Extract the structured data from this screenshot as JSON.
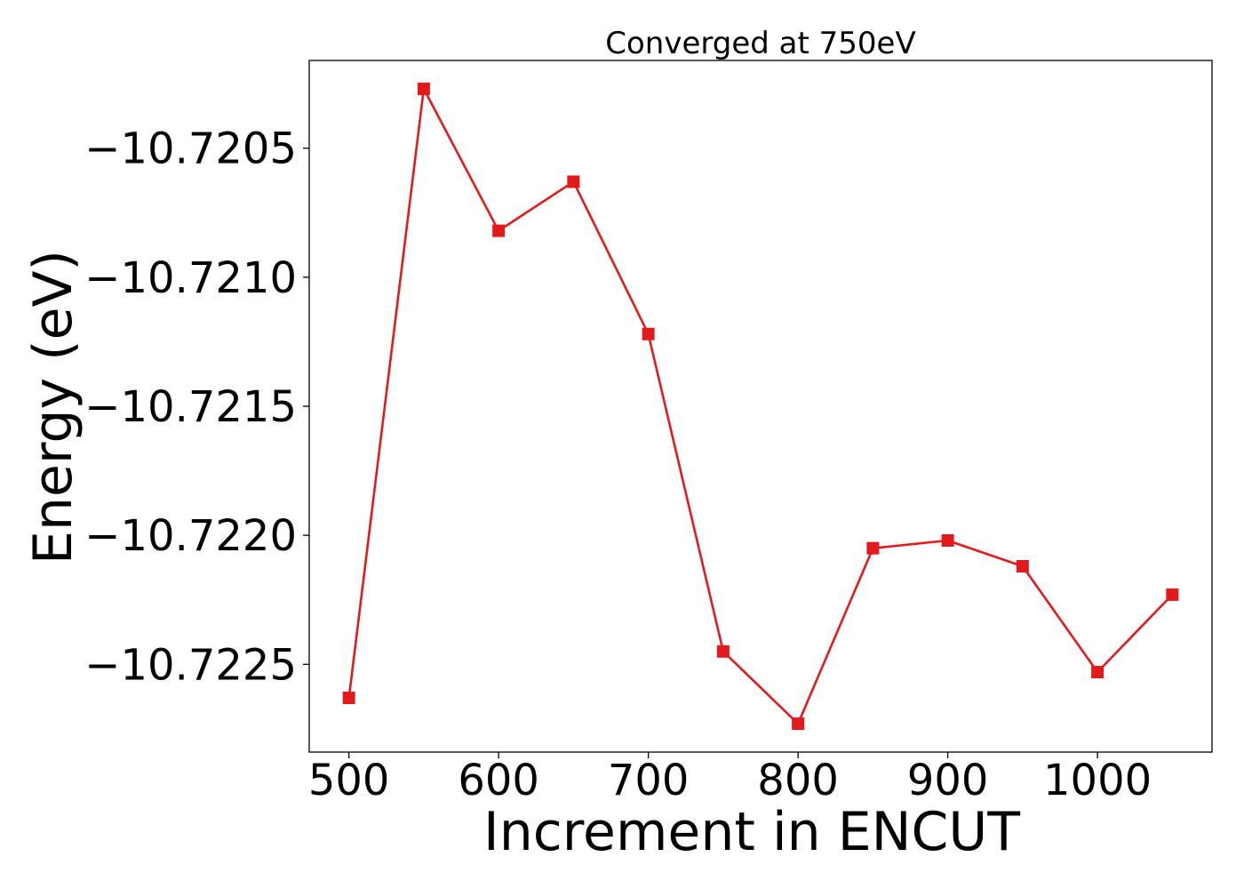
{
  "chart_data": {
    "type": "line",
    "title": "Converged at 750eV",
    "xlabel": "Increment in ENCUT",
    "ylabel": "Energy (eV)",
    "xlim": [
      473.5,
      1076.5
    ],
    "ylim": [
      -10.72284,
      -10.72016
    ],
    "xticks": [
      500,
      600,
      700,
      800,
      900,
      1000
    ],
    "xtick_labels": [
      "500",
      "600",
      "700",
      "800",
      "900",
      "1000"
    ],
    "yticks": [
      -10.7205,
      -10.721,
      -10.7215,
      -10.722,
      -10.7225
    ],
    "ytick_labels": [
      "−10.7205",
      "−10.7210",
      "−10.7215",
      "−10.7220",
      "−10.7225"
    ],
    "grid": false,
    "legend": "none",
    "series": [
      {
        "color": "#e31a1c",
        "marker": "square",
        "x": [
          500,
          550,
          600,
          650,
          700,
          750,
          800,
          850,
          900,
          950,
          1000,
          1050
        ],
        "y": [
          -10.72263,
          -10.72027,
          -10.72082,
          -10.72063,
          -10.72122,
          -10.72245,
          -10.72273,
          -10.72205,
          -10.72202,
          -10.72212,
          -10.72253,
          -10.72223
        ]
      }
    ]
  }
}
